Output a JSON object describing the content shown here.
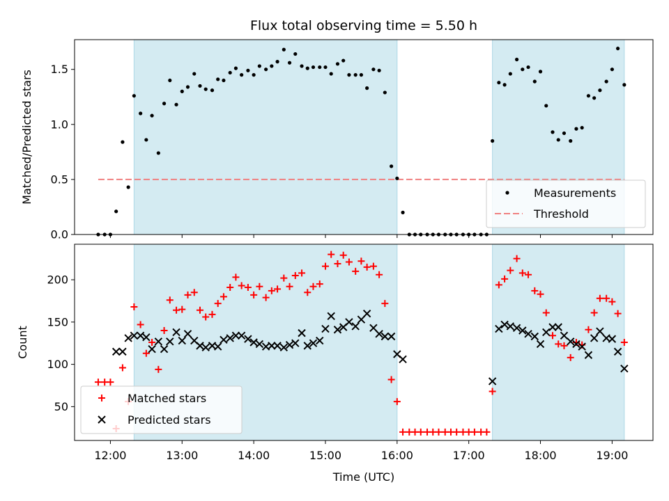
{
  "chart_data": [
    {
      "type": "scatter",
      "title": "Flux total observing time = 5.50 h",
      "ylabel": "Matched/Predicted stars",
      "xlabel": "",
      "xlim": [
        11.5,
        19.57
      ],
      "ylim": [
        0,
        1.77
      ],
      "yticks": [
        0.0,
        0.5,
        1.0,
        1.5
      ],
      "ytick_labels": [
        "0.0",
        "0.5",
        "1.0",
        "1.5"
      ],
      "grid": false,
      "legend_position": "bottom-right",
      "shaded_intervals": [
        [
          12.33,
          16.0
        ],
        [
          17.33,
          19.17
        ]
      ],
      "threshold": {
        "name": "Threshold",
        "value": 0.5,
        "x_range": [
          11.83,
          19.17
        ],
        "color": "#f08080"
      },
      "series": [
        {
          "name": "Measurements",
          "color": "#000000",
          "marker": "dot",
          "x": [
            11.83,
            11.92,
            12.0,
            12.08,
            12.17,
            12.25,
            12.33,
            12.42,
            12.5,
            12.58,
            12.67,
            12.75,
            12.83,
            12.92,
            13.0,
            13.08,
            13.17,
            13.25,
            13.33,
            13.42,
            13.5,
            13.58,
            13.67,
            13.75,
            13.83,
            13.92,
            14.0,
            14.08,
            14.17,
            14.25,
            14.33,
            14.42,
            14.5,
            14.58,
            14.67,
            14.75,
            14.83,
            14.92,
            15.0,
            15.08,
            15.17,
            15.25,
            15.33,
            15.42,
            15.5,
            15.58,
            15.67,
            15.75,
            15.83,
            15.92,
            16.0,
            16.08,
            16.17,
            16.25,
            16.33,
            16.42,
            16.5,
            16.58,
            16.67,
            16.75,
            16.83,
            16.92,
            17.0,
            17.08,
            17.17,
            17.25,
            17.33,
            17.42,
            17.5,
            17.58,
            17.67,
            17.75,
            17.83,
            17.92,
            18.0,
            18.08,
            18.17,
            18.25,
            18.33,
            18.42,
            18.5,
            18.58,
            18.67,
            18.75,
            18.83,
            18.92,
            19.0,
            19.08,
            19.17
          ],
          "y": [
            0.0,
            0.0,
            0.0,
            0.21,
            0.84,
            0.43,
            1.26,
            1.1,
            0.86,
            1.08,
            0.74,
            1.19,
            1.4,
            1.18,
            1.3,
            1.34,
            1.46,
            1.35,
            1.32,
            1.31,
            1.41,
            1.4,
            1.47,
            1.51,
            1.45,
            1.49,
            1.45,
            1.53,
            1.5,
            1.53,
            1.57,
            1.68,
            1.56,
            1.64,
            1.53,
            1.51,
            1.52,
            1.52,
            1.52,
            1.46,
            1.55,
            1.58,
            1.45,
            1.45,
            1.45,
            1.33,
            1.5,
            1.49,
            1.29,
            0.62,
            0.51,
            0.2,
            0.0,
            0.0,
            0.0,
            0.0,
            0.0,
            0.0,
            0.0,
            0.0,
            0.0,
            0.0,
            0.0,
            0.0,
            0.0,
            0.0,
            0.85,
            1.38,
            1.36,
            1.46,
            1.59,
            1.5,
            1.52,
            1.39,
            1.48,
            1.17,
            0.93,
            0.86,
            0.92,
            0.85,
            0.96,
            0.97,
            1.26,
            1.24,
            1.31,
            1.39,
            1.5,
            1.69,
            1.36
          ]
        }
      ]
    },
    {
      "type": "scatter",
      "title": "",
      "ylabel": "Count",
      "xlabel": "Time (UTC)",
      "xlim": [
        11.5,
        19.57
      ],
      "ylim": [
        10,
        242
      ],
      "xticks": [
        12,
        13,
        14,
        15,
        16,
        17,
        18,
        19
      ],
      "xtick_labels": [
        "12:00",
        "13:00",
        "14:00",
        "15:00",
        "16:00",
        "17:00",
        "18:00",
        "19:00"
      ],
      "yticks": [
        50,
        100,
        150,
        200
      ],
      "ytick_labels": [
        "50",
        "100",
        "150",
        "200"
      ],
      "grid": false,
      "legend_position": "bottom-left",
      "shaded_intervals": [
        [
          12.33,
          16.0
        ],
        [
          17.33,
          19.17
        ]
      ],
      "series": [
        {
          "name": "Matched stars",
          "color": "#ff0000",
          "marker": "plus",
          "x": [
            11.83,
            11.92,
            12.0,
            12.08,
            12.17,
            12.25,
            12.33,
            12.42,
            12.5,
            12.58,
            12.67,
            12.75,
            12.83,
            12.92,
            13.0,
            13.08,
            13.17,
            13.25,
            13.33,
            13.42,
            13.5,
            13.58,
            13.67,
            13.75,
            13.83,
            13.92,
            14.0,
            14.08,
            14.17,
            14.25,
            14.33,
            14.42,
            14.5,
            14.58,
            14.67,
            14.75,
            14.83,
            14.92,
            15.0,
            15.08,
            15.17,
            15.25,
            15.33,
            15.42,
            15.5,
            15.58,
            15.67,
            15.75,
            15.83,
            15.92,
            16.0,
            16.08,
            16.17,
            16.25,
            16.33,
            16.42,
            16.5,
            16.58,
            16.67,
            16.75,
            16.83,
            16.92,
            17.0,
            17.08,
            17.17,
            17.25,
            17.33,
            17.42,
            17.5,
            17.58,
            17.67,
            17.75,
            17.83,
            17.92,
            18.0,
            18.08,
            18.17,
            18.25,
            18.33,
            18.42,
            18.5,
            18.58,
            18.67,
            18.75,
            18.83,
            18.92,
            19.0,
            19.08,
            19.17
          ],
          "y": [
            79,
            79,
            79,
            24,
            96,
            56,
            168,
            147,
            113,
            126,
            94,
            140,
            176,
            164,
            165,
            182,
            185,
            164,
            156,
            159,
            172,
            180,
            191,
            203,
            193,
            191,
            182,
            192,
            179,
            187,
            189,
            202,
            192,
            205,
            208,
            185,
            192,
            195,
            216,
            230,
            219,
            229,
            221,
            210,
            222,
            215,
            216,
            206,
            172,
            82,
            56,
            20,
            20,
            20,
            20,
            20,
            20,
            20,
            20,
            20,
            20,
            20,
            20,
            20,
            20,
            20,
            68,
            194,
            201,
            211,
            225,
            208,
            206,
            187,
            183,
            161,
            134,
            124,
            122,
            108,
            126,
            123,
            141,
            161,
            178,
            178,
            174,
            160,
            126
          ]
        },
        {
          "name": "Predicted stars",
          "color": "#000000",
          "marker": "x",
          "x": [
            12.08,
            12.17,
            12.25,
            12.33,
            12.42,
            12.5,
            12.58,
            12.67,
            12.75,
            12.83,
            12.92,
            13.0,
            13.08,
            13.17,
            13.25,
            13.33,
            13.42,
            13.5,
            13.58,
            13.67,
            13.75,
            13.83,
            13.92,
            14.0,
            14.08,
            14.17,
            14.25,
            14.33,
            14.42,
            14.5,
            14.58,
            14.67,
            14.75,
            14.83,
            14.92,
            15.0,
            15.08,
            15.17,
            15.25,
            15.33,
            15.42,
            15.5,
            15.58,
            15.67,
            15.75,
            15.83,
            15.92,
            16.0,
            16.08,
            17.33,
            17.42,
            17.5,
            17.58,
            17.67,
            17.75,
            17.83,
            17.92,
            18.0,
            18.08,
            18.17,
            18.25,
            18.33,
            18.42,
            18.5,
            18.58,
            18.67,
            18.75,
            18.83,
            18.92,
            19.0,
            19.08,
            19.17
          ],
          "y": [
            115,
            115,
            131,
            134,
            134,
            132,
            118,
            127,
            118,
            127,
            138,
            128,
            136,
            128,
            122,
            120,
            122,
            121,
            129,
            131,
            134,
            134,
            130,
            126,
            124,
            121,
            122,
            122,
            120,
            123,
            125,
            137,
            122,
            125,
            128,
            142,
            157,
            141,
            144,
            150,
            145,
            153,
            160,
            143,
            136,
            133,
            133,
            112,
            106,
            80,
            142,
            147,
            145,
            143,
            140,
            136,
            133,
            124,
            138,
            144,
            144,
            134,
            127,
            124,
            121,
            111,
            131,
            139,
            131,
            130,
            115,
            95
          ]
        }
      ]
    }
  ]
}
